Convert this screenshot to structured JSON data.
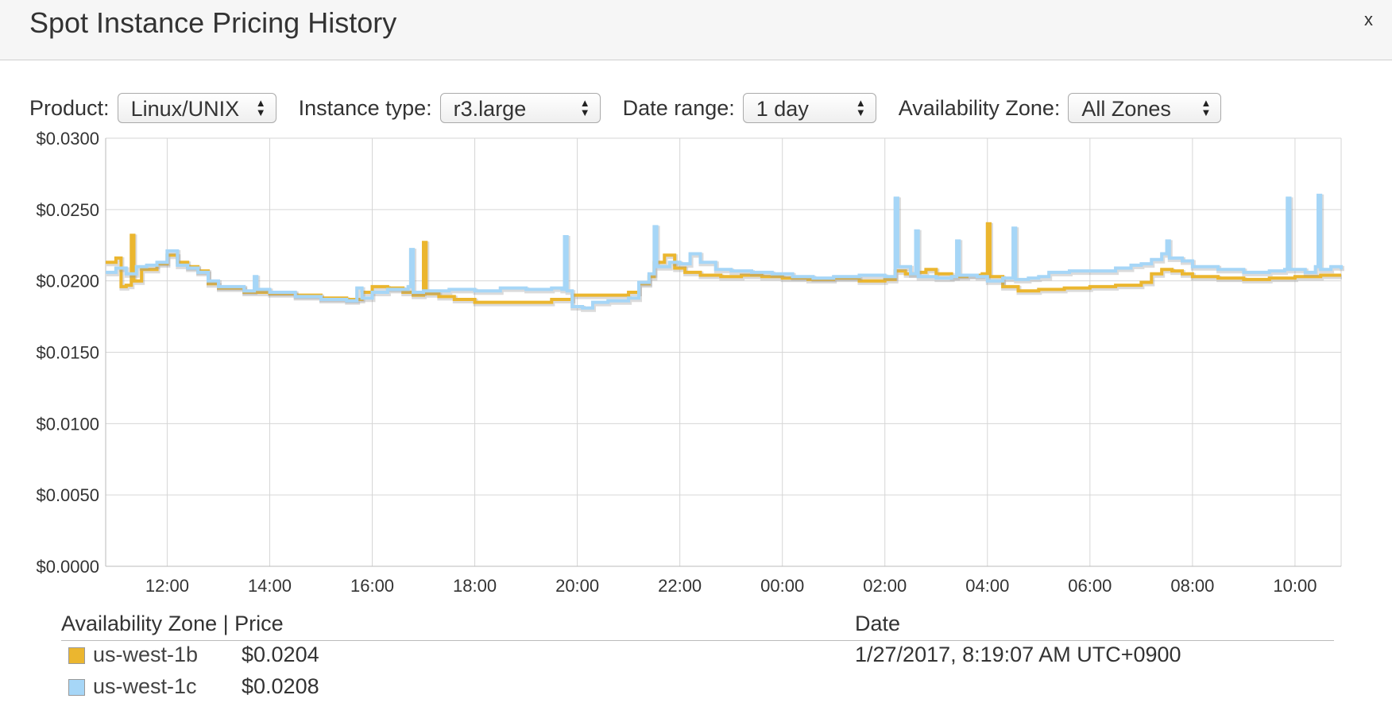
{
  "header": {
    "title": "Spot Instance Pricing History",
    "close_label": "x"
  },
  "controls": {
    "product": {
      "label": "Product:",
      "value": "Linux/UNIX"
    },
    "instance_type": {
      "label": "Instance type:",
      "value": "r3.large"
    },
    "date_range": {
      "label": "Date range:",
      "value": "1 day"
    },
    "availability_zone": {
      "label": "Availability Zone:",
      "value": "All Zones"
    }
  },
  "legend": {
    "header_zone_price": "Availability Zone | Price",
    "header_date": "Date",
    "date": "1/27/2017, 8:19:07 AM UTC+0900",
    "rows": [
      {
        "zone": "us-west-1b",
        "price": "$0.0204",
        "color": "#ebb62f"
      },
      {
        "zone": "us-west-1c",
        "price": "$0.0208",
        "color": "#a6d6f7"
      }
    ]
  },
  "chart_data": {
    "type": "line",
    "x_range_hours": [
      10.8,
      34.9
    ],
    "ylim": [
      0,
      0.03
    ],
    "y_ticks": [
      "$0.0000",
      "$0.0050",
      "$0.0100",
      "$0.0150",
      "$0.0200",
      "$0.0250",
      "$0.0300"
    ],
    "x_ticks": [
      {
        "hour": 12,
        "label": "12:00"
      },
      {
        "hour": 14,
        "label": "14:00"
      },
      {
        "hour": 16,
        "label": "16:00"
      },
      {
        "hour": 18,
        "label": "18:00"
      },
      {
        "hour": 20,
        "label": "20:00"
      },
      {
        "hour": 22,
        "label": "22:00"
      },
      {
        "hour": 24,
        "label": "00:00"
      },
      {
        "hour": 26,
        "label": "02:00"
      },
      {
        "hour": 28,
        "label": "04:00"
      },
      {
        "hour": 30,
        "label": "06:00"
      },
      {
        "hour": 32,
        "label": "08:00"
      },
      {
        "hour": 34,
        "label": "10:00"
      }
    ],
    "grid": true,
    "series": [
      {
        "name": "us-west-1b",
        "color": "#ebb62f",
        "points": [
          [
            10.8,
            0.0213
          ],
          [
            11.0,
            0.0216
          ],
          [
            11.1,
            0.0196
          ],
          [
            11.2,
            0.0197
          ],
          [
            11.3,
            0.0232
          ],
          [
            11.35,
            0.02
          ],
          [
            11.5,
            0.0208
          ],
          [
            11.8,
            0.0212
          ],
          [
            12.0,
            0.0218
          ],
          [
            12.2,
            0.0213
          ],
          [
            12.4,
            0.021
          ],
          [
            12.6,
            0.0207
          ],
          [
            12.8,
            0.0198
          ],
          [
            13.0,
            0.0195
          ],
          [
            13.5,
            0.0192
          ],
          [
            14.0,
            0.0191
          ],
          [
            14.5,
            0.019
          ],
          [
            15.0,
            0.0188
          ],
          [
            15.5,
            0.0187
          ],
          [
            15.8,
            0.0192
          ],
          [
            16.0,
            0.0196
          ],
          [
            16.3,
            0.0195
          ],
          [
            16.6,
            0.0192
          ],
          [
            16.8,
            0.019
          ],
          [
            17.0,
            0.0227
          ],
          [
            17.05,
            0.0191
          ],
          [
            17.3,
            0.0189
          ],
          [
            17.6,
            0.0187
          ],
          [
            18.0,
            0.0185
          ],
          [
            18.5,
            0.0185
          ],
          [
            19.0,
            0.0185
          ],
          [
            19.5,
            0.0187
          ],
          [
            19.9,
            0.019
          ],
          [
            20.2,
            0.019
          ],
          [
            20.6,
            0.019
          ],
          [
            21.0,
            0.0192
          ],
          [
            21.2,
            0.0198
          ],
          [
            21.4,
            0.0203
          ],
          [
            21.5,
            0.0213
          ],
          [
            21.7,
            0.0218
          ],
          [
            21.9,
            0.0209
          ],
          [
            22.1,
            0.0206
          ],
          [
            22.4,
            0.0204
          ],
          [
            22.8,
            0.0203
          ],
          [
            23.2,
            0.0204
          ],
          [
            23.6,
            0.0203
          ],
          [
            24.0,
            0.0202
          ],
          [
            24.5,
            0.0201
          ],
          [
            25.0,
            0.0202
          ],
          [
            25.5,
            0.02
          ],
          [
            26.0,
            0.0201
          ],
          [
            26.2,
            0.0207
          ],
          [
            26.4,
            0.0205
          ],
          [
            26.6,
            0.0206
          ],
          [
            26.8,
            0.0208
          ],
          [
            27.0,
            0.0205
          ],
          [
            27.3,
            0.0203
          ],
          [
            27.6,
            0.0204
          ],
          [
            27.9,
            0.0205
          ],
          [
            28.0,
            0.024
          ],
          [
            28.05,
            0.0203
          ],
          [
            28.3,
            0.0196
          ],
          [
            28.6,
            0.0193
          ],
          [
            29.0,
            0.0194
          ],
          [
            29.5,
            0.0195
          ],
          [
            30.0,
            0.0196
          ],
          [
            30.5,
            0.0197
          ],
          [
            31.0,
            0.0199
          ],
          [
            31.2,
            0.0205
          ],
          [
            31.4,
            0.0208
          ],
          [
            31.6,
            0.0207
          ],
          [
            31.8,
            0.0205
          ],
          [
            32.0,
            0.0203
          ],
          [
            32.5,
            0.0202
          ],
          [
            33.0,
            0.0201
          ],
          [
            33.5,
            0.0202
          ],
          [
            34.0,
            0.0203
          ],
          [
            34.5,
            0.0204
          ],
          [
            34.9,
            0.0204
          ]
        ]
      },
      {
        "name": "us-west-1c",
        "color": "#a6d6f7",
        "points": [
          [
            10.8,
            0.0206
          ],
          [
            11.0,
            0.0209
          ],
          [
            11.2,
            0.0205
          ],
          [
            11.4,
            0.021
          ],
          [
            11.6,
            0.0211
          ],
          [
            11.8,
            0.0213
          ],
          [
            12.0,
            0.0221
          ],
          [
            12.2,
            0.0211
          ],
          [
            12.4,
            0.0209
          ],
          [
            12.6,
            0.0206
          ],
          [
            12.8,
            0.02
          ],
          [
            13.0,
            0.0196
          ],
          [
            13.5,
            0.0193
          ],
          [
            13.7,
            0.0203
          ],
          [
            13.75,
            0.0194
          ],
          [
            14.0,
            0.0192
          ],
          [
            14.5,
            0.0189
          ],
          [
            15.0,
            0.0187
          ],
          [
            15.5,
            0.0186
          ],
          [
            15.7,
            0.0195
          ],
          [
            15.8,
            0.0188
          ],
          [
            16.0,
            0.0192
          ],
          [
            16.3,
            0.0194
          ],
          [
            16.7,
            0.0196
          ],
          [
            16.75,
            0.0222
          ],
          [
            16.8,
            0.0192
          ],
          [
            17.0,
            0.0193
          ],
          [
            17.5,
            0.0194
          ],
          [
            18.0,
            0.0193
          ],
          [
            18.5,
            0.0195
          ],
          [
            19.0,
            0.0194
          ],
          [
            19.5,
            0.0195
          ],
          [
            19.7,
            0.0194
          ],
          [
            19.75,
            0.0231
          ],
          [
            19.8,
            0.0193
          ],
          [
            19.9,
            0.0182
          ],
          [
            20.1,
            0.0181
          ],
          [
            20.3,
            0.0185
          ],
          [
            20.6,
            0.0186
          ],
          [
            21.0,
            0.0188
          ],
          [
            21.2,
            0.0199
          ],
          [
            21.4,
            0.0205
          ],
          [
            21.5,
            0.0238
          ],
          [
            21.55,
            0.021
          ],
          [
            21.8,
            0.0213
          ],
          [
            22.0,
            0.0212
          ],
          [
            22.2,
            0.0219
          ],
          [
            22.4,
            0.0213
          ],
          [
            22.7,
            0.0208
          ],
          [
            23.0,
            0.0207
          ],
          [
            23.4,
            0.0206
          ],
          [
            23.8,
            0.0205
          ],
          [
            24.2,
            0.0203
          ],
          [
            24.6,
            0.0202
          ],
          [
            25.0,
            0.0203
          ],
          [
            25.5,
            0.0204
          ],
          [
            26.0,
            0.0203
          ],
          [
            26.2,
            0.0258
          ],
          [
            26.25,
            0.021
          ],
          [
            26.5,
            0.0205
          ],
          [
            26.6,
            0.0235
          ],
          [
            26.65,
            0.0203
          ],
          [
            27.0,
            0.0202
          ],
          [
            27.3,
            0.0203
          ],
          [
            27.4,
            0.0228
          ],
          [
            27.45,
            0.0204
          ],
          [
            27.8,
            0.0203
          ],
          [
            28.0,
            0.02
          ],
          [
            28.3,
            0.0202
          ],
          [
            28.5,
            0.0237
          ],
          [
            28.55,
            0.0201
          ],
          [
            28.8,
            0.0202
          ],
          [
            29.0,
            0.0203
          ],
          [
            29.2,
            0.0206
          ],
          [
            29.6,
            0.0207
          ],
          [
            30.0,
            0.0207
          ],
          [
            30.5,
            0.0209
          ],
          [
            30.8,
            0.0211
          ],
          [
            31.0,
            0.0212
          ],
          [
            31.2,
            0.0215
          ],
          [
            31.4,
            0.0219
          ],
          [
            31.5,
            0.0228
          ],
          [
            31.55,
            0.0216
          ],
          [
            31.8,
            0.0214
          ],
          [
            32.0,
            0.021
          ],
          [
            32.5,
            0.0208
          ],
          [
            33.0,
            0.0206
          ],
          [
            33.5,
            0.0207
          ],
          [
            33.8,
            0.0208
          ],
          [
            33.85,
            0.0258
          ],
          [
            33.9,
            0.0208
          ],
          [
            34.2,
            0.0206
          ],
          [
            34.4,
            0.021
          ],
          [
            34.45,
            0.026
          ],
          [
            34.5,
            0.0208
          ],
          [
            34.7,
            0.021
          ],
          [
            34.9,
            0.0208
          ]
        ]
      }
    ]
  }
}
